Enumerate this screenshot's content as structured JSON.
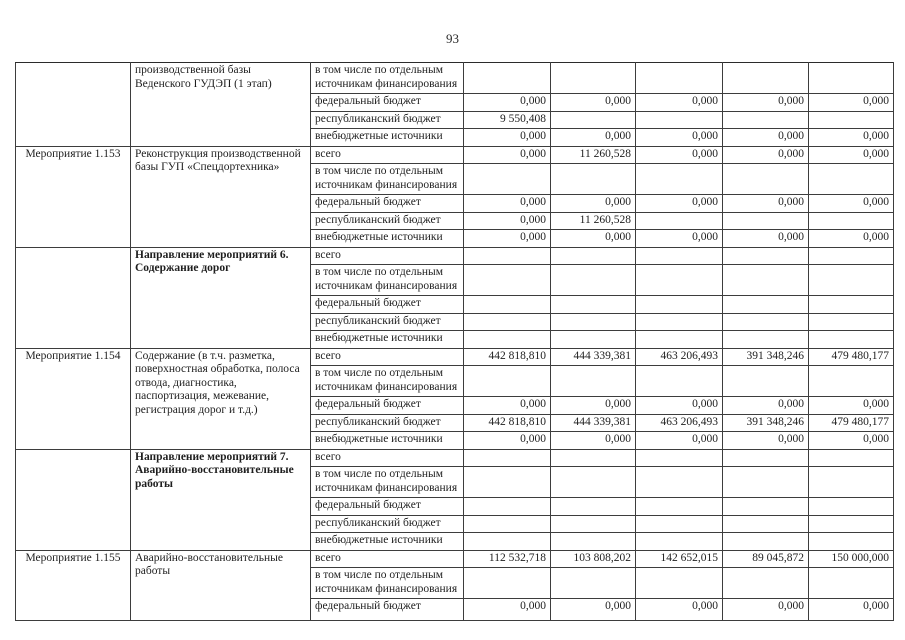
{
  "page": {
    "number": "93"
  },
  "table": {
    "blocks": [
      {
        "id": "",
        "title": "производственной базы Веденского ГУДЭП (1 этап)",
        "bold": false,
        "rows": [
          {
            "label": "в том числе по отдельным источникам финансирования",
            "values": [
              "",
              "",
              "",
              "",
              ""
            ]
          },
          {
            "label": "федеральный бюджет",
            "values": [
              "0,000",
              "0,000",
              "0,000",
              "0,000",
              "0,000"
            ]
          },
          {
            "label": "республиканский бюджет",
            "values": [
              "9 550,408",
              "",
              "",
              "",
              ""
            ]
          },
          {
            "label": "внебюджетные источники",
            "values": [
              "0,000",
              "0,000",
              "0,000",
              "0,000",
              "0,000"
            ]
          }
        ]
      },
      {
        "id": "Мероприятие 1.153",
        "title": "Реконструкция производственной базы ГУП «Спецдортехника»",
        "bold": false,
        "rows": [
          {
            "label": "всего",
            "values": [
              "0,000",
              "11 260,528",
              "0,000",
              "0,000",
              "0,000"
            ]
          },
          {
            "label": "в том числе по отдельным источникам финансирования",
            "values": [
              "",
              "",
              "",
              "",
              ""
            ]
          },
          {
            "label": "федеральный бюджет",
            "values": [
              "0,000",
              "0,000",
              "0,000",
              "0,000",
              "0,000"
            ]
          },
          {
            "label": "республиканский бюджет",
            "values": [
              "0,000",
              "11 260,528",
              "",
              "",
              ""
            ]
          },
          {
            "label": "внебюджетные источники",
            "values": [
              "0,000",
              "0,000",
              "0,000",
              "0,000",
              "0,000"
            ]
          }
        ]
      },
      {
        "id": "",
        "title": "Направление мероприятий 6. Содержание дорог",
        "bold": true,
        "rows": [
          {
            "label": "всего",
            "values": [
              "",
              "",
              "",
              "",
              ""
            ]
          },
          {
            "label": "в том числе по отдельным источникам финансирования",
            "values": [
              "",
              "",
              "",
              "",
              ""
            ]
          },
          {
            "label": "федеральный бюджет",
            "values": [
              "",
              "",
              "",
              "",
              ""
            ]
          },
          {
            "label": "республиканский бюджет",
            "values": [
              "",
              "",
              "",
              "",
              ""
            ]
          },
          {
            "label": "внебюджетные источники",
            "values": [
              "",
              "",
              "",
              "",
              ""
            ]
          }
        ]
      },
      {
        "id": "Мероприятие 1.154",
        "title": "Содержание (в т.ч. разметка, поверхностная обработка, полоса отвода, диагностика, паспортизация, межевание, регистрация дорог и т.д.)",
        "bold": false,
        "rows": [
          {
            "label": "всего",
            "values": [
              "442 818,810",
              "444 339,381",
              "463 206,493",
              "391 348,246",
              "479 480,177"
            ]
          },
          {
            "label": "в том числе по отдельным источникам финансирования",
            "values": [
              "",
              "",
              "",
              "",
              ""
            ]
          },
          {
            "label": "федеральный бюджет",
            "values": [
              "0,000",
              "0,000",
              "0,000",
              "0,000",
              "0,000"
            ]
          },
          {
            "label": "республиканский бюджет",
            "values": [
              "442 818,810",
              "444 339,381",
              "463 206,493",
              "391 348,246",
              "479 480,177"
            ]
          },
          {
            "label": "внебюджетные источники",
            "values": [
              "0,000",
              "0,000",
              "0,000",
              "0,000",
              "0,000"
            ]
          }
        ]
      },
      {
        "id": "",
        "title": "Направление мероприятий 7. Аварийно-восстановительные работы",
        "bold": true,
        "rows": [
          {
            "label": "всего",
            "values": [
              "",
              "",
              "",
              "",
              ""
            ]
          },
          {
            "label": "в том числе по отдельным источникам финансирования",
            "values": [
              "",
              "",
              "",
              "",
              ""
            ]
          },
          {
            "label": "федеральный бюджет",
            "values": [
              "",
              "",
              "",
              "",
              ""
            ]
          },
          {
            "label": "республиканский бюджет",
            "values": [
              "",
              "",
              "",
              "",
              ""
            ]
          },
          {
            "label": "внебюджетные источники",
            "values": [
              "",
              "",
              "",
              "",
              ""
            ]
          }
        ]
      },
      {
        "id": "Мероприятие 1.155",
        "title": "Аварийно-восстановительные работы",
        "bold": false,
        "rows": [
          {
            "label": "всего",
            "values": [
              "112 532,718",
              "103 808,202",
              "142 652,015",
              "89 045,872",
              "150 000,000"
            ]
          },
          {
            "label": "в том числе по отдельным источникам финансирования",
            "values": [
              "",
              "",
              "",
              "",
              ""
            ]
          },
          {
            "label": "федеральный бюджет",
            "values": [
              "0,000",
              "0,000",
              "0,000",
              "0,000",
              "0,000"
            ]
          }
        ]
      }
    ]
  }
}
